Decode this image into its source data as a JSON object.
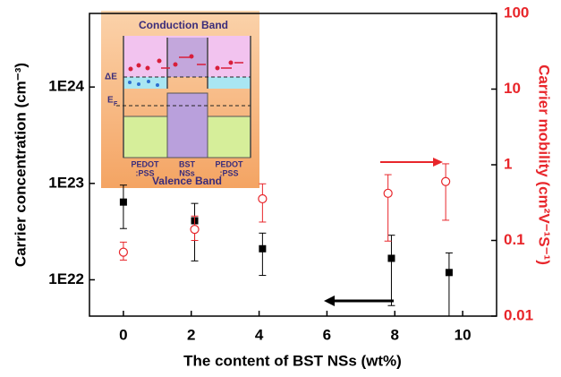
{
  "chart_data": {
    "type": "scatter",
    "x_label": "The content of BST NSs (wt%)",
    "y_label": "Carrier concentration (cm⁻³)",
    "y2_label": "Carrier mobility (cm²V⁻¹S⁻¹)",
    "xlim": [
      -1,
      11
    ],
    "xticks": [
      0,
      2,
      4,
      6,
      8,
      10
    ],
    "ylog": true,
    "ylim": [
      4.2e+21,
      5.8e+24
    ],
    "yticks": [
      {
        "value": 1e+22,
        "label": "1E22"
      },
      {
        "value": 1e+23,
        "label": "1E23"
      },
      {
        "value": 1e+24,
        "label": "1E24"
      }
    ],
    "y2log": true,
    "y2lim": [
      0.01,
      100
    ],
    "y2ticks": [
      0.01,
      0.1,
      1,
      10,
      100
    ],
    "y2color": "#e8262b",
    "series": [
      {
        "color": "#000000",
        "marker": "square",
        "x": [
          0,
          2.1,
          4.1,
          7.9,
          9.6
        ],
        "values": [
          6.4e+22,
          4.1e+22,
          2.1e+22,
          1.67e+22,
          1.19e+22
        ],
        "low": [
          3.4e+22,
          1.57e+22,
          1.11e+22,
          5.4e+21,
          4.2e+21
        ],
        "high": [
          9.6e+22,
          6.2e+22,
          3.05e+22,
          2.9e+22,
          1.9e+22
        ]
      },
      {
        "color": "#e8262b",
        "marker": "circle-open",
        "axis": "y2",
        "x": [
          0,
          2.1,
          4.1,
          7.8,
          9.5
        ],
        "values": [
          0.07,
          0.14,
          0.355,
          0.42,
          0.6
        ],
        "low": [
          0.055,
          0.1,
          0.175,
          0.098,
          0.185
        ],
        "high": [
          0.095,
          0.21,
          0.56,
          0.74,
          1.03
        ]
      }
    ],
    "inset": {
      "top": "Conduction Band",
      "delta": "ΔE",
      "fermi": "E",
      "fermi_sub": "F",
      "left": [
        "PEDOT",
        ":PSS"
      ],
      "middle": [
        "BST",
        "NSs"
      ],
      "right": [
        "PEDOT",
        ":PSS"
      ],
      "bottom": "Valence Band"
    }
  }
}
